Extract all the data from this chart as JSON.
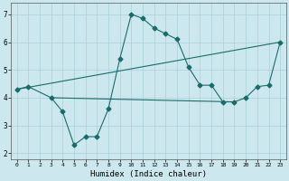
{
  "xlabel": "Humidex (Indice chaleur)",
  "bg_color": "#cce8ee",
  "line_color": "#1a6b6b",
  "xlim": [
    -0.5,
    23.5
  ],
  "ylim": [
    1.8,
    7.4
  ],
  "xticks": [
    0,
    1,
    2,
    3,
    4,
    5,
    6,
    7,
    8,
    9,
    10,
    11,
    12,
    13,
    14,
    15,
    16,
    17,
    18,
    19,
    20,
    21,
    22,
    23
  ],
  "yticks": [
    2,
    3,
    4,
    5,
    6,
    7
  ],
  "line1_x": [
    0,
    1,
    3,
    4,
    5,
    6,
    7,
    8,
    9,
    10,
    11,
    12,
    13,
    14,
    15,
    16,
    17,
    18,
    19,
    20,
    21,
    22,
    23
  ],
  "line1_y": [
    4.3,
    4.4,
    4.0,
    3.5,
    2.3,
    2.6,
    2.6,
    3.6,
    5.4,
    7.0,
    6.85,
    6.5,
    6.3,
    6.1,
    5.1,
    4.45,
    4.45,
    3.85,
    3.85,
    4.0,
    4.4,
    4.45,
    6.0
  ],
  "line2_x": [
    0,
    23
  ],
  "line2_y": [
    4.3,
    6.0
  ],
  "line3_x": [
    3,
    19
  ],
  "line3_y": [
    4.0,
    3.85
  ],
  "grid_color": "#aacfd8",
  "markersize": 2.5
}
